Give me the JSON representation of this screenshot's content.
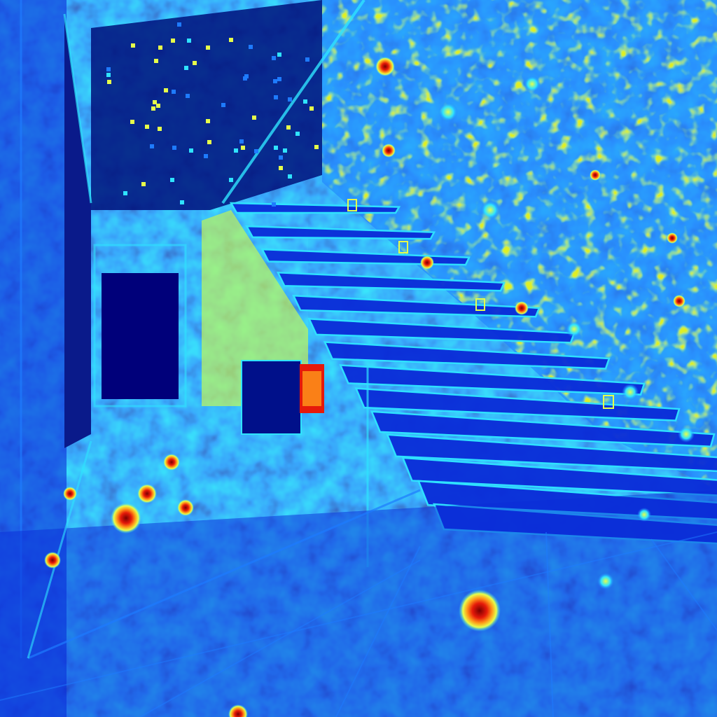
{
  "image": {
    "description_kind": "jet-colormap edge / saliency heatmap of an interior with floating staircase",
    "palette": {
      "deep": "#00007a",
      "base": "#0a2cd8",
      "mid": "#1e7bff",
      "cyan": "#2fe3ff",
      "yellow": "#e6ff4a",
      "orange": "#ff9a1a",
      "red": "#e61a0a",
      "darkred": "#7a0000"
    }
  }
}
